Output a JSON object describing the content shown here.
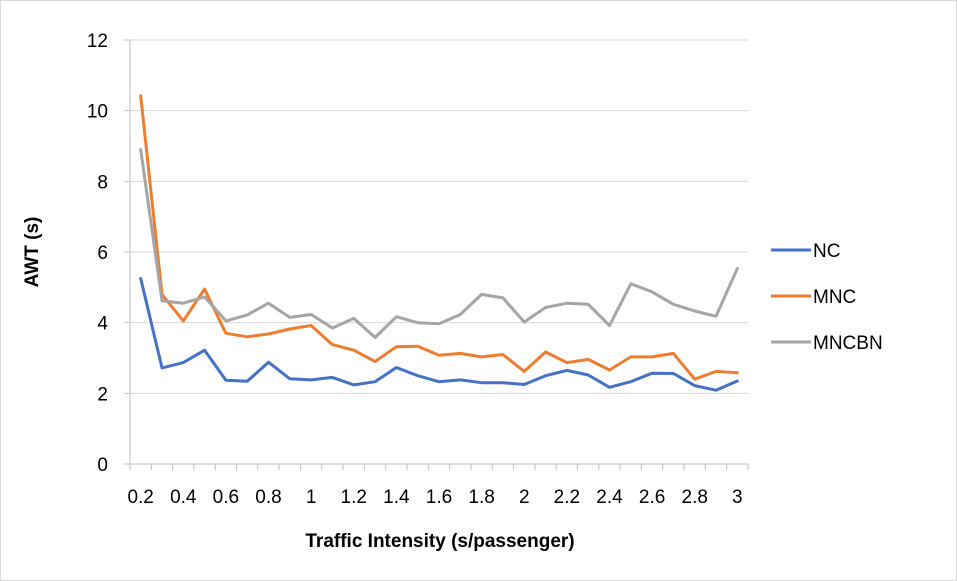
{
  "chart_data": {
    "type": "line",
    "title": "",
    "xlabel": "Traffic Intensity (s/passenger)",
    "ylabel": "AWT (s)",
    "ylim": [
      0,
      12
    ],
    "yticks": [
      "0",
      "2",
      "4",
      "6",
      "8",
      "10",
      "12"
    ],
    "xticks": [
      "0.2",
      "0.4",
      "0.6",
      "0.8",
      "1",
      "1.2",
      "1.4",
      "1.6",
      "1.8",
      "2",
      "2.2",
      "2.4",
      "2.6",
      "2.8",
      "3"
    ],
    "x": [
      0.2,
      0.3,
      0.4,
      0.5,
      0.6,
      0.7,
      0.8,
      0.9,
      1.0,
      1.1,
      1.2,
      1.3,
      1.4,
      1.5,
      1.6,
      1.7,
      1.8,
      1.9,
      2.0,
      2.1,
      2.2,
      2.3,
      2.4,
      2.5,
      2.6,
      2.7,
      2.8,
      2.9,
      3.0
    ],
    "legend_position": "right",
    "grid": "horizontal",
    "series": [
      {
        "name": "NC",
        "color": "#4472c4",
        "values": [
          5.25,
          2.72,
          2.87,
          3.22,
          2.37,
          2.34,
          2.88,
          2.41,
          2.38,
          2.45,
          2.24,
          2.33,
          2.73,
          2.5,
          2.33,
          2.38,
          2.3,
          2.3,
          2.25,
          2.5,
          2.65,
          2.52,
          2.17,
          2.33,
          2.57,
          2.56,
          2.22,
          2.09,
          2.35
        ]
      },
      {
        "name": "MNC",
        "color": "#ed7d31",
        "values": [
          10.42,
          4.8,
          4.05,
          4.95,
          3.7,
          3.6,
          3.68,
          3.82,
          3.92,
          3.38,
          3.22,
          2.9,
          3.32,
          3.33,
          3.08,
          3.13,
          3.03,
          3.1,
          2.62,
          3.17,
          2.87,
          2.96,
          2.66,
          3.03,
          3.03,
          3.13,
          2.4,
          2.62,
          2.58
        ]
      },
      {
        "name": "MNCBN",
        "color": "#a5a5a5",
        "values": [
          8.9,
          4.62,
          4.55,
          4.73,
          4.05,
          4.22,
          4.55,
          4.15,
          4.23,
          3.85,
          4.12,
          3.58,
          4.17,
          4.0,
          3.97,
          4.23,
          4.8,
          4.7,
          4.02,
          4.43,
          4.55,
          4.52,
          3.92,
          5.1,
          4.87,
          4.52,
          4.33,
          4.18,
          5.53
        ]
      }
    ]
  }
}
